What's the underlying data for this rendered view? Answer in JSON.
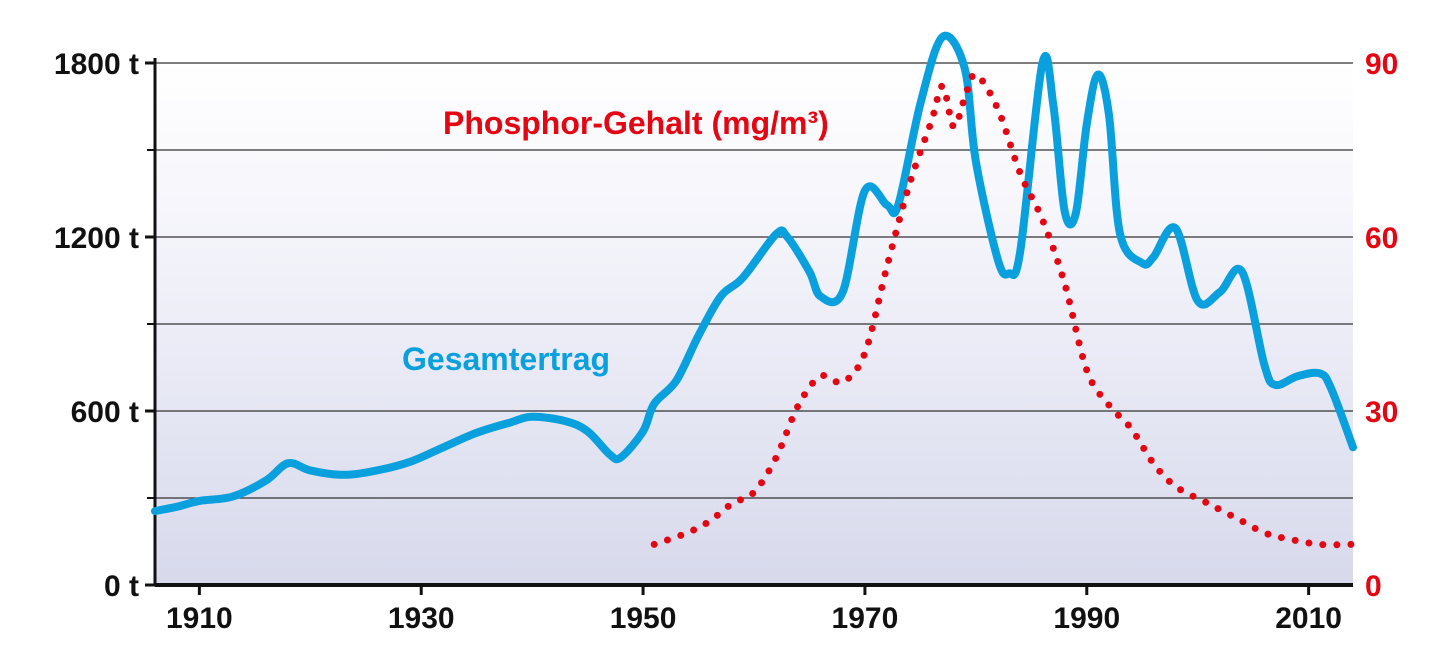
{
  "chart_data": {
    "type": "line",
    "title": "",
    "xlabel": "",
    "xlim": [
      1906,
      2014
    ],
    "x_ticks": [
      "1910",
      "1930",
      "1950",
      "1970",
      "1990",
      "2010"
    ],
    "grid": true,
    "axes": {
      "left": {
        "ylim": [
          0,
          1800
        ],
        "tick_labels": [
          "0 t",
          "600 t",
          "1200 t",
          "1800 t"
        ],
        "tick_values": [
          0,
          600,
          1200,
          1800
        ],
        "minor_tick_values": [
          300,
          900,
          1500
        ]
      },
      "right": {
        "ylim": [
          0,
          90
        ],
        "tick_labels": [
          "0",
          "30",
          "60",
          "90"
        ],
        "tick_values": [
          0,
          30,
          60,
          90
        ]
      }
    },
    "series": [
      {
        "name": "Gesamtertrag",
        "axis": "left",
        "style": "solid",
        "color": "#0aa0de",
        "points": [
          [
            1906,
            255
          ],
          [
            1908,
            270
          ],
          [
            1910,
            290
          ],
          [
            1913,
            305
          ],
          [
            1916,
            360
          ],
          [
            1918,
            420
          ],
          [
            1920,
            395
          ],
          [
            1923,
            380
          ],
          [
            1926,
            395
          ],
          [
            1929,
            425
          ],
          [
            1932,
            475
          ],
          [
            1935,
            525
          ],
          [
            1938,
            560
          ],
          [
            1940,
            580
          ],
          [
            1943,
            565
          ],
          [
            1945,
            530
          ],
          [
            1947,
            450
          ],
          [
            1948,
            440
          ],
          [
            1950,
            530
          ],
          [
            1951,
            625
          ],
          [
            1953,
            705
          ],
          [
            1955,
            860
          ],
          [
            1957,
            995
          ],
          [
            1959,
            1060
          ],
          [
            1962,
            1210
          ],
          [
            1963,
            1200
          ],
          [
            1965,
            1080
          ],
          [
            1966,
            995
          ],
          [
            1968,
            1010
          ],
          [
            1970,
            1360
          ],
          [
            1972,
            1310
          ],
          [
            1973,
            1310
          ],
          [
            1975,
            1660
          ],
          [
            1977,
            1890
          ],
          [
            1979,
            1780
          ],
          [
            1980,
            1460
          ],
          [
            1982,
            1120
          ],
          [
            1983,
            1075
          ],
          [
            1984,
            1150
          ],
          [
            1986,
            1800
          ],
          [
            1987,
            1650
          ],
          [
            1988,
            1290
          ],
          [
            1989,
            1280
          ],
          [
            1990,
            1590
          ],
          [
            1991,
            1760
          ],
          [
            1992,
            1620
          ],
          [
            1993,
            1210
          ],
          [
            1995,
            1110
          ],
          [
            1996,
            1130
          ],
          [
            1998,
            1230
          ],
          [
            2000,
            980
          ],
          [
            2002,
            1010
          ],
          [
            2004,
            1080
          ],
          [
            2006,
            760
          ],
          [
            2007,
            690
          ],
          [
            2009,
            720
          ],
          [
            2011,
            730
          ],
          [
            2012,
            680
          ],
          [
            2014,
            475
          ]
        ]
      },
      {
        "name": "Phosphor-Gehalt (mg/m³)",
        "axis": "right",
        "style": "dotted",
        "color": "#e30613",
        "points": [
          [
            1951,
            7
          ],
          [
            1954,
            9
          ],
          [
            1956,
            11
          ],
          [
            1958,
            14
          ],
          [
            1960,
            16
          ],
          [
            1962,
            22
          ],
          [
            1964,
            31
          ],
          [
            1966,
            36
          ],
          [
            1968,
            35
          ],
          [
            1970,
            40
          ],
          [
            1972,
            55
          ],
          [
            1974,
            69
          ],
          [
            1976,
            80
          ],
          [
            1977,
            86
          ],
          [
            1978,
            79
          ],
          [
            1979,
            84
          ],
          [
            1980,
            88
          ],
          [
            1982,
            82
          ],
          [
            1984,
            71
          ],
          [
            1986,
            63
          ],
          [
            1988,
            52
          ],
          [
            1990,
            37
          ],
          [
            1992,
            31
          ],
          [
            1994,
            27
          ],
          [
            1996,
            21
          ],
          [
            1998,
            17
          ],
          [
            2001,
            14
          ],
          [
            2004,
            11
          ],
          [
            2006,
            9
          ],
          [
            2008,
            8
          ],
          [
            2011,
            7
          ],
          [
            2014,
            7
          ]
        ]
      }
    ]
  }
}
